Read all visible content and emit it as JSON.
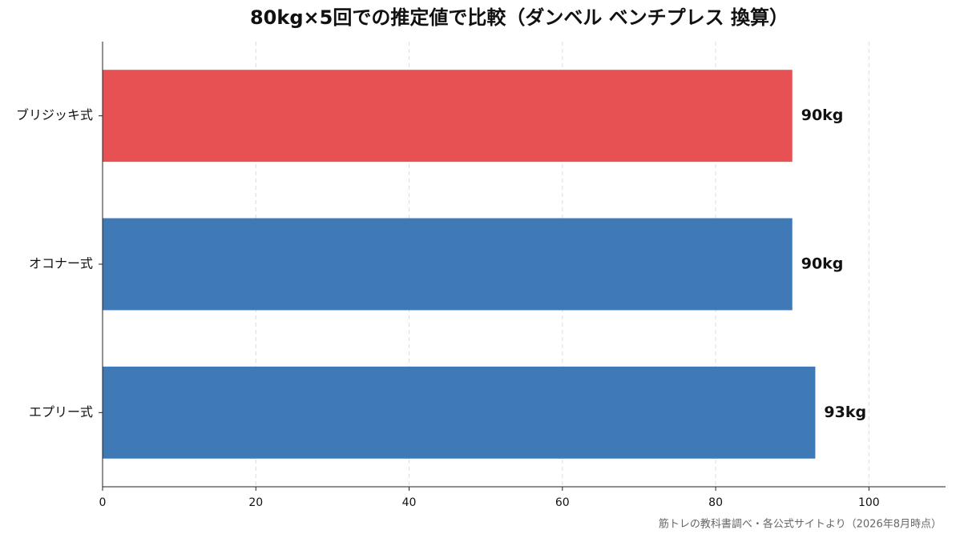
{
  "chart_data": {
    "type": "barh",
    "title": "80kg×5回での推定値で比較（ダンベル ベンチプレス 換算）",
    "categories": [
      "ブリジッキ式",
      "オコナー式",
      "エプリー式"
    ],
    "values": [
      90,
      90,
      93
    ],
    "value_labels": [
      "90kg",
      "90kg",
      "93kg"
    ],
    "colors": [
      "#e75153",
      "#3f7ab7",
      "#3f7ab7"
    ],
    "xlim": [
      0,
      110
    ],
    "xticks": [
      0,
      20,
      40,
      60,
      80,
      100
    ],
    "grid": true,
    "source": "筋トレの教科書調べ・各公式サイトより（2026年8月時点）"
  }
}
